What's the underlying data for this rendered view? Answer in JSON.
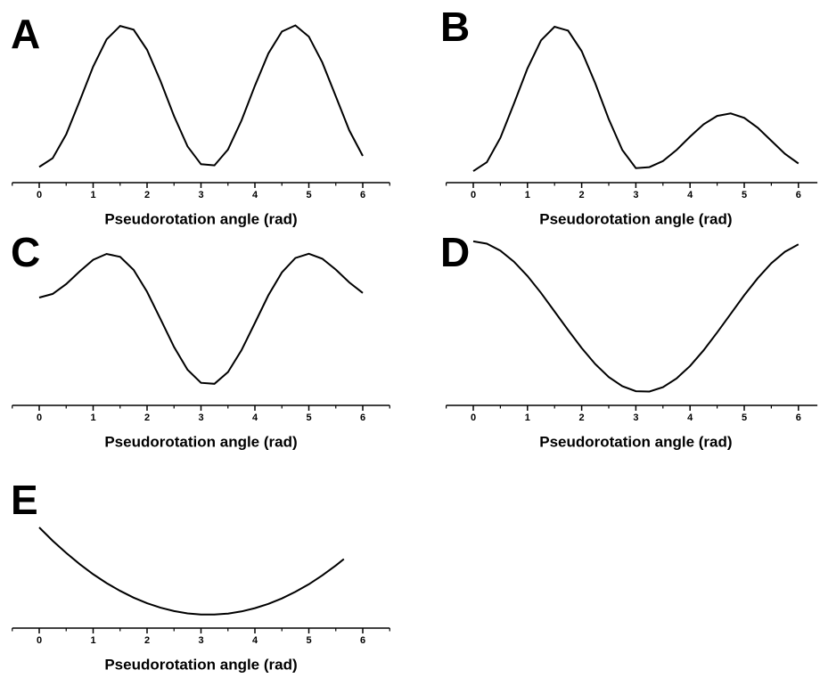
{
  "chart_data": [
    {
      "type": "line",
      "title": "A",
      "xlabel": "Pseudorotation angle (rad)",
      "color": "#000000",
      "x": [
        0,
        0.25,
        0.5,
        0.75,
        1,
        1.25,
        1.5,
        1.75,
        2,
        2.25,
        2.5,
        2.75,
        3,
        3.25,
        3.5,
        3.75,
        4,
        4.25,
        4.5,
        4.75,
        5,
        5.25,
        5.5,
        5.75,
        6
      ],
      "values": [
        0.095,
        0.148,
        0.293,
        0.495,
        0.704,
        0.869,
        0.951,
        0.928,
        0.806,
        0.616,
        0.403,
        0.22,
        0.112,
        0.105,
        0.201,
        0.376,
        0.588,
        0.784,
        0.917,
        0.954,
        0.886,
        0.729,
        0.523,
        0.317,
        0.162
      ],
      "xlim": [
        -0.5,
        6.5
      ],
      "ylim": [
        0,
        1
      ],
      "xticks": [
        0,
        1,
        2,
        3,
        4,
        5,
        6
      ],
      "xminorticks": [
        -0.5,
        0.5,
        1.5,
        2.5,
        3.5,
        4.5,
        5.5,
        6.5
      ]
    },
    {
      "type": "line",
      "title": "B",
      "xlabel": "Pseudorotation angle (rad)",
      "color": "#000000",
      "x": [
        0,
        0.25,
        0.5,
        0.75,
        1,
        1.25,
        1.5,
        1.75,
        2,
        2.25,
        2.5,
        2.75,
        3,
        3.25,
        3.5,
        3.75,
        4,
        4.25,
        4.5,
        4.75,
        5,
        5.25,
        5.5,
        5.75,
        6
      ],
      "values": [
        0.07,
        0.124,
        0.272,
        0.479,
        0.693,
        0.863,
        0.946,
        0.922,
        0.798,
        0.603,
        0.385,
        0.198,
        0.088,
        0.094,
        0.131,
        0.198,
        0.279,
        0.354,
        0.405,
        0.42,
        0.393,
        0.333,
        0.254,
        0.175,
        0.116
      ],
      "xlim": [
        -0.5,
        6.35
      ],
      "ylim": [
        0,
        1
      ],
      "xticks": [
        0,
        1,
        2,
        3,
        4,
        5,
        6
      ],
      "xminorticks": [
        -0.5,
        0.5,
        1.5,
        2.5,
        3.5,
        4.5,
        5.5
      ]
    },
    {
      "type": "line",
      "title": "C",
      "xlabel": "Pseudorotation angle (rad)",
      "color": "#000000",
      "x": [
        0,
        0.25,
        0.5,
        0.75,
        1,
        1.25,
        1.5,
        1.75,
        2,
        2.25,
        2.5,
        2.75,
        3,
        3.25,
        3.5,
        3.75,
        4,
        4.25,
        4.5,
        4.75,
        5,
        5.25,
        5.5,
        5.75,
        6
      ],
      "values": [
        0.654,
        0.676,
        0.736,
        0.813,
        0.883,
        0.919,
        0.901,
        0.822,
        0.689,
        0.523,
        0.354,
        0.216,
        0.137,
        0.131,
        0.202,
        0.334,
        0.5,
        0.668,
        0.807,
        0.894,
        0.92,
        0.89,
        0.824,
        0.746,
        0.682
      ],
      "xlim": [
        -0.5,
        6.5
      ],
      "ylim": [
        0,
        1
      ],
      "xticks": [
        0,
        1,
        2,
        3,
        4,
        5,
        6
      ],
      "xminorticks": [
        -0.5,
        0.5,
        1.5,
        2.5,
        3.5,
        4.5,
        5.5,
        6.5
      ]
    },
    {
      "type": "line",
      "title": "D",
      "xlabel": "Pseudorotation angle (rad)",
      "color": "#000000",
      "x": [
        0,
        0.25,
        0.5,
        0.75,
        1,
        1.25,
        1.5,
        1.75,
        2,
        2.25,
        2.5,
        2.75,
        3,
        3.25,
        3.5,
        3.75,
        4,
        4.25,
        4.5,
        4.75,
        5,
        5.25,
        5.5,
        5.75,
        6
      ],
      "values": [
        0.995,
        0.981,
        0.939,
        0.872,
        0.785,
        0.682,
        0.57,
        0.457,
        0.348,
        0.251,
        0.172,
        0.116,
        0.086,
        0.084,
        0.11,
        0.163,
        0.239,
        0.334,
        0.442,
        0.555,
        0.668,
        0.772,
        0.862,
        0.932,
        0.977
      ],
      "xlim": [
        -0.5,
        6.35
      ],
      "ylim": [
        0,
        1
      ],
      "xticks": [
        0,
        1,
        2,
        3,
        4,
        5,
        6
      ],
      "xminorticks": [
        -0.5,
        0.5,
        1.5,
        2.5,
        3.5,
        4.5,
        5.5
      ]
    },
    {
      "type": "line",
      "title": "E",
      "xlabel": "Pseudorotation angle (rad)",
      "color": "#000000",
      "x": [
        0,
        0.25,
        0.5,
        0.75,
        1,
        1.25,
        1.5,
        1.75,
        2,
        2.25,
        2.5,
        2.75,
        3,
        3.25,
        3.5,
        3.75,
        4,
        4.25,
        4.5,
        4.75,
        5,
        5.25,
        5.5,
        5.65
      ],
      "values": [
        0.611,
        0.53,
        0.456,
        0.388,
        0.327,
        0.273,
        0.226,
        0.185,
        0.151,
        0.124,
        0.103,
        0.089,
        0.082,
        0.082,
        0.088,
        0.101,
        0.121,
        0.147,
        0.18,
        0.22,
        0.266,
        0.32,
        0.38,
        0.419
      ],
      "xlim": [
        -0.5,
        6.5
      ],
      "ylim": [
        0,
        1
      ],
      "xticks": [
        0,
        1,
        2,
        3,
        4,
        5,
        6
      ],
      "xminorticks": [
        -0.5,
        0.5,
        1.5,
        2.5,
        3.5,
        4.5,
        5.5,
        6.5
      ]
    }
  ]
}
